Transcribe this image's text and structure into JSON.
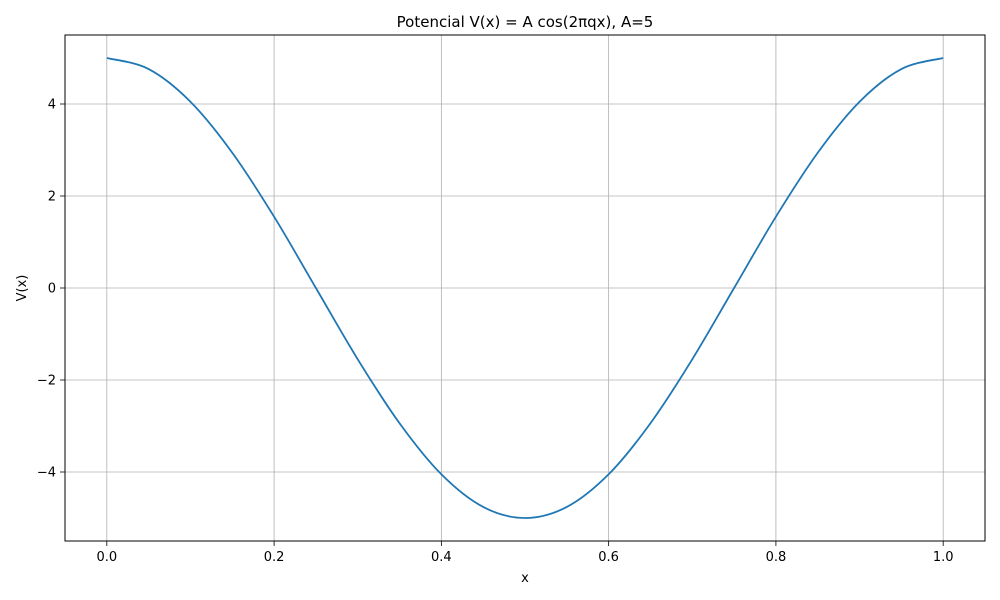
{
  "chart_data": {
    "type": "line",
    "title": "Potencial V(x) = A cos(2πqx), A=5",
    "xlabel": "x",
    "ylabel": "V(x)",
    "xlim": [
      -0.05,
      1.05
    ],
    "ylim": [
      -5.5,
      5.5
    ],
    "grid": true,
    "x_ticks": [
      0.0,
      0.2,
      0.4,
      0.6,
      0.8,
      1.0
    ],
    "x_tick_labels": [
      "0.0",
      "0.2",
      "0.4",
      "0.6",
      "0.8",
      "1.0"
    ],
    "y_ticks": [
      -4,
      -2,
      0,
      2,
      4
    ],
    "y_tick_labels": [
      "−4",
      "−2",
      "0",
      "2",
      "4"
    ],
    "series": [
      {
        "color": "#1f77b4",
        "x": [
          0.0,
          0.05,
          0.1,
          0.15,
          0.2,
          0.25,
          0.3,
          0.35,
          0.4,
          0.45,
          0.5,
          0.55,
          0.6,
          0.65,
          0.7,
          0.75,
          0.8,
          0.85,
          0.9,
          0.95,
          1.0
        ],
        "y": [
          5.0,
          4.76,
          4.05,
          2.94,
          1.55,
          0.0,
          -1.55,
          -2.94,
          -4.05,
          -4.76,
          -5.0,
          -4.76,
          -4.05,
          -2.94,
          -1.55,
          0.0,
          1.55,
          2.94,
          4.05,
          4.76,
          5.0
        ]
      }
    ]
  }
}
